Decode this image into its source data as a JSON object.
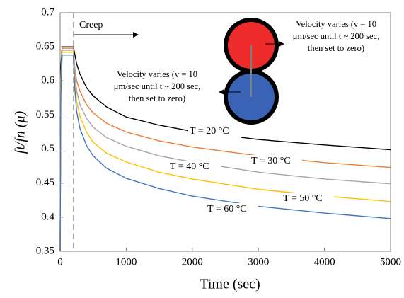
{
  "chart_data": {
    "type": "line",
    "x_label": "Time (sec)",
    "y_label": "ft/fn (μ)",
    "xlim": [
      0,
      5000
    ],
    "xticks": [
      0,
      1000,
      2000,
      3000,
      4000,
      5000
    ],
    "ylim": [
      0.35,
      0.7
    ],
    "yticks": [
      0.35,
      0.4,
      0.45,
      0.5,
      0.55,
      0.6,
      0.65,
      0.7
    ],
    "x": [
      0,
      10,
      30,
      100,
      200,
      220,
      250,
      300,
      400,
      500,
      700,
      1000,
      1500,
      2000,
      3000,
      4000,
      5000
    ],
    "series": [
      {
        "name": "T = 20 °C",
        "color": "#000000",
        "values": [
          0.35,
          0.62,
          0.65,
          0.65,
          0.65,
          0.64,
          0.625,
          0.61,
          0.59,
          0.578,
          0.562,
          0.547,
          0.535,
          0.526,
          0.514,
          0.506,
          0.499
        ]
      },
      {
        "name": "T = 30 °C",
        "color": "#ed7d31",
        "values": [
          0.35,
          0.6,
          0.648,
          0.648,
          0.648,
          0.62,
          0.6,
          0.585,
          0.565,
          0.553,
          0.538,
          0.525,
          0.512,
          0.503,
          0.49,
          0.48,
          0.473
        ]
      },
      {
        "name": "T = 40 °C",
        "color": "#a5a5a5",
        "values": [
          0.35,
          0.6,
          0.645,
          0.645,
          0.645,
          0.61,
          0.585,
          0.565,
          0.545,
          0.532,
          0.517,
          0.504,
          0.49,
          0.481,
          0.466,
          0.456,
          0.449
        ]
      },
      {
        "name": "T = 50 °C",
        "color": "#ffc000",
        "values": [
          0.35,
          0.59,
          0.642,
          0.642,
          0.642,
          0.6,
          0.57,
          0.548,
          0.525,
          0.51,
          0.494,
          0.481,
          0.466,
          0.456,
          0.441,
          0.431,
          0.423
        ]
      },
      {
        "name": "T = 60 °C",
        "color": "#4472c4",
        "values": [
          0.35,
          0.58,
          0.638,
          0.638,
          0.638,
          0.59,
          0.555,
          0.53,
          0.505,
          0.49,
          0.472,
          0.457,
          0.442,
          0.431,
          0.416,
          0.406,
          0.398
        ]
      }
    ],
    "creep_label": "Creep",
    "creep_start": 200,
    "annotation_top": [
      "Velocity varies (v = 10",
      "μm/sec until t ~ 200 sec,",
      "then set to zero)"
    ],
    "annotation_bottom": [
      "Velocity varies (v = 10",
      "μm/sec until t ~ 200 sec,",
      "then set to zero)"
    ]
  }
}
